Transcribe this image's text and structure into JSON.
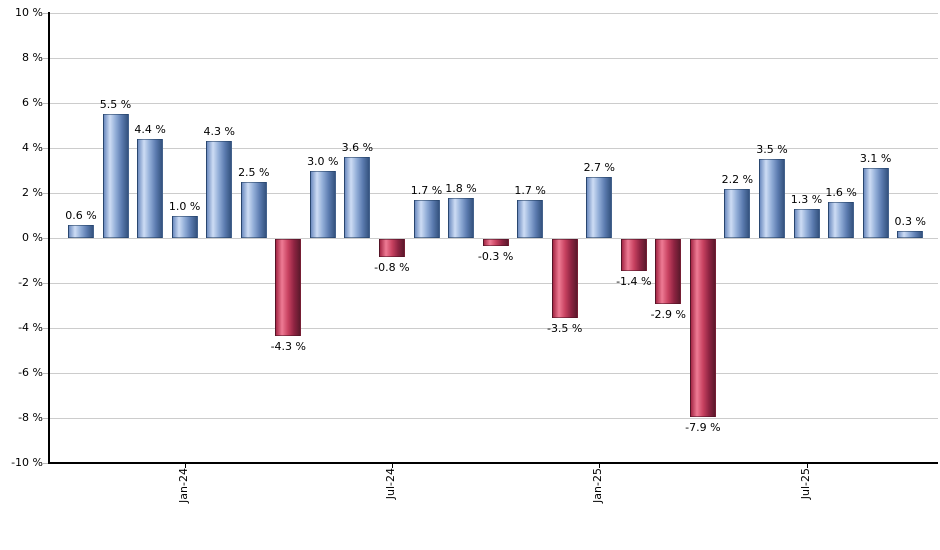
{
  "chart_data": {
    "type": "bar",
    "title": "",
    "xlabel": "",
    "ylabel": "",
    "ylim": [
      -10,
      10
    ],
    "y_tick_step": 2,
    "grid": true,
    "legend": null,
    "background_color": "#ffffff",
    "gridline_color": "#cccccc",
    "axis_color": "#000000",
    "label_color": "#000000",
    "y_ticks": [
      {
        "value": 10,
        "label": "10 %"
      },
      {
        "value": 8,
        "label": "8 %"
      },
      {
        "value": 6,
        "label": "6 %"
      },
      {
        "value": 4,
        "label": "4 %"
      },
      {
        "value": 2,
        "label": "2 %"
      },
      {
        "value": 0,
        "label": "0 %"
      },
      {
        "value": -2,
        "label": "-2 %"
      },
      {
        "value": -4,
        "label": "-4 %"
      },
      {
        "value": -6,
        "label": "-6 %"
      },
      {
        "value": -8,
        "label": "-8 %"
      },
      {
        "value": -10,
        "label": "-10 %"
      }
    ],
    "x_ticks": [
      {
        "bar_index": 3,
        "label": "Jan-24"
      },
      {
        "bar_index": 9,
        "label": "Jul-24"
      },
      {
        "bar_index": 15,
        "label": "Jan-25"
      },
      {
        "bar_index": 21,
        "label": "Jul-25"
      }
    ],
    "bars": [
      {
        "value": 0.6,
        "label": "0.6 %"
      },
      {
        "value": 5.5,
        "label": "5.5 %"
      },
      {
        "value": 4.4,
        "label": "4.4 %"
      },
      {
        "value": 1.0,
        "label": "1.0 %"
      },
      {
        "value": 4.3,
        "label": "4.3 %"
      },
      {
        "value": 2.5,
        "label": "2.5 %"
      },
      {
        "value": -4.3,
        "label": "-4.3 %"
      },
      {
        "value": 3.0,
        "label": "3.0 %"
      },
      {
        "value": 3.6,
        "label": "3.6 %"
      },
      {
        "value": -0.8,
        "label": "-0.8 %"
      },
      {
        "value": 1.7,
        "label": "1.7 %"
      },
      {
        "value": 1.8,
        "label": "1.8 %"
      },
      {
        "value": -0.3,
        "label": "-0.3 %"
      },
      {
        "value": 1.7,
        "label": "1.7 %"
      },
      {
        "value": -3.5,
        "label": "-3.5 %"
      },
      {
        "value": 2.7,
        "label": "2.7 %"
      },
      {
        "value": -1.4,
        "label": "-1.4 %"
      },
      {
        "value": -2.9,
        "label": "-2.9 %"
      },
      {
        "value": -7.9,
        "label": "-7.9 %"
      },
      {
        "value": 2.2,
        "label": "2.2 %"
      },
      {
        "value": 3.5,
        "label": "3.5 %"
      },
      {
        "value": 1.3,
        "label": "1.3 %"
      },
      {
        "value": 1.6,
        "label": "1.6 %"
      },
      {
        "value": 3.1,
        "label": "3.1 %"
      },
      {
        "value": 0.3,
        "label": "0.3 %"
      }
    ],
    "positive_bar_colors": {
      "left": "#6d8cc0",
      "highlight": "#cddcf4",
      "mid": "#8fabd6",
      "shade": "#5a7aae",
      "right": "#35537f"
    },
    "negative_bar_colors": {
      "left": "#a52745",
      "highlight": "#ee7b94",
      "mid": "#c94261",
      "shade": "#8f2442",
      "right": "#5c192c"
    }
  }
}
